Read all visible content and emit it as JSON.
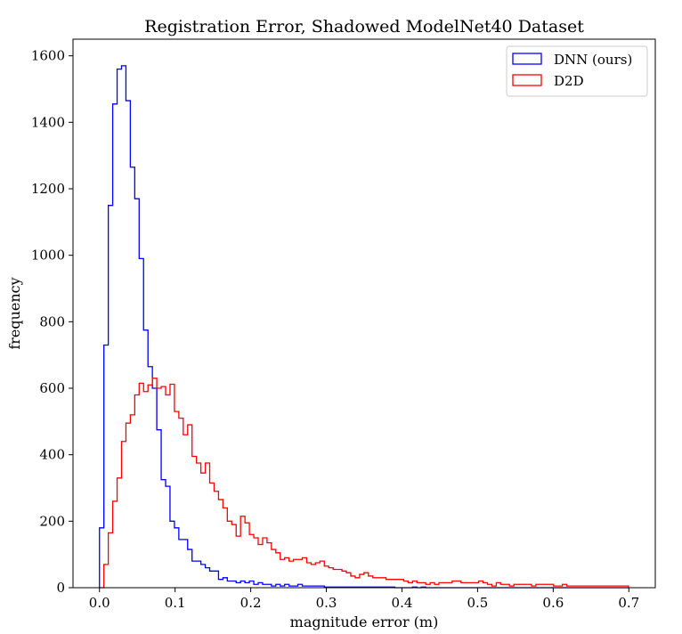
{
  "chart_data": {
    "type": "histogram",
    "title": "Registration Error, Shadowed ModelNet40 Dataset",
    "xlabel": "magnitude error (m)",
    "ylabel": "frequency",
    "xlim": [
      -0.035,
      0.735
    ],
    "ylim": [
      0,
      1650
    ],
    "xticks": [
      0.0,
      0.1,
      0.2,
      0.3,
      0.4,
      0.5,
      0.6,
      0.7
    ],
    "xtick_labels": [
      "0.0",
      "0.1",
      "0.2",
      "0.3",
      "0.4",
      "0.5",
      "0.6",
      "0.7"
    ],
    "yticks": [
      0,
      200,
      400,
      600,
      800,
      1000,
      1200,
      1400,
      1600
    ],
    "ytick_labels": [
      "0",
      "200",
      "400",
      "600",
      "800",
      "1000",
      "1200",
      "1400",
      "1600"
    ],
    "bin_start": 0.0,
    "bin_width": 0.00583,
    "legend_position": "upper right",
    "grid": false,
    "series": [
      {
        "name": "DNN (ours)",
        "color": "#0000ff",
        "values": [
          180,
          730,
          1150,
          1455,
          1560,
          1570,
          1465,
          1265,
          1170,
          990,
          775,
          665,
          600,
          475,
          325,
          305,
          200,
          180,
          145,
          145,
          115,
          80,
          80,
          70,
          60,
          50,
          50,
          25,
          30,
          20,
          20,
          15,
          20,
          15,
          20,
          10,
          15,
          10,
          10,
          5,
          10,
          5,
          10,
          5,
          5,
          10,
          5,
          5,
          5,
          5,
          5,
          2,
          2,
          2,
          2,
          2,
          2,
          2,
          2,
          2,
          2,
          2,
          2,
          2,
          2,
          2,
          2,
          0,
          0,
          0,
          0,
          2,
          0,
          2,
          0,
          0,
          0,
          0,
          0,
          0,
          0,
          0,
          0,
          0,
          0,
          0,
          0,
          0,
          0,
          0,
          0,
          0,
          0,
          0,
          0,
          0,
          0,
          0,
          0,
          0,
          0,
          0,
          0,
          0,
          0,
          0,
          0,
          0,
          0,
          0,
          0,
          0,
          0,
          0,
          0,
          0,
          0,
          0,
          0,
          0
        ]
      },
      {
        "name": "D2D",
        "color": "#ff0000",
        "values": [
          0,
          70,
          165,
          260,
          330,
          440,
          495,
          520,
          580,
          615,
          590,
          610,
          630,
          600,
          605,
          580,
          612,
          530,
          510,
          460,
          490,
          395,
          375,
          345,
          375,
          315,
          290,
          265,
          240,
          200,
          190,
          155,
          215,
          195,
          160,
          150,
          130,
          150,
          135,
          115,
          105,
          85,
          90,
          80,
          85,
          85,
          90,
          75,
          70,
          75,
          80,
          65,
          60,
          55,
          55,
          50,
          45,
          35,
          30,
          40,
          45,
          35,
          30,
          30,
          30,
          25,
          25,
          25,
          25,
          20,
          15,
          20,
          15,
          15,
          10,
          15,
          10,
          15,
          15,
          15,
          20,
          20,
          15,
          15,
          15,
          15,
          20,
          15,
          10,
          5,
          15,
          10,
          10,
          5,
          10,
          10,
          10,
          10,
          5,
          10,
          10,
          10,
          10,
          5,
          5,
          10,
          5,
          5,
          5,
          5,
          5,
          5,
          5,
          5,
          5,
          5,
          5,
          5,
          5,
          5
        ]
      }
    ]
  }
}
